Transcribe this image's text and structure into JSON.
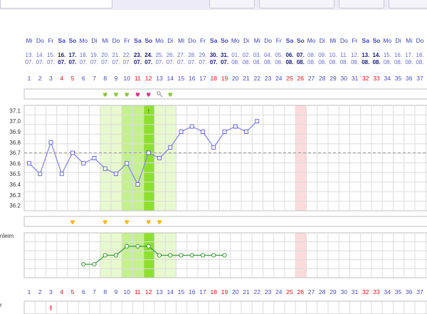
{
  "days": {
    "weekday": [
      "Mi",
      "Do",
      "Fr",
      "Sa",
      "So",
      "Mo",
      "Di",
      "Mi",
      "Do",
      "Fr",
      "Sa",
      "So",
      "Mo",
      "Di",
      "Mi",
      "Do",
      "Fr",
      "Sa",
      "So",
      "Mo",
      "Di",
      "Mi",
      "Do",
      "Fr",
      "Sa",
      "So",
      "Mo",
      "Di",
      "Mi",
      "Do",
      "Fr",
      "Sa",
      "So",
      "Mo",
      "Di",
      "Mi",
      "Do",
      "Fr"
    ],
    "date_top": [
      "13.",
      "14.",
      "15.",
      "16.",
      "17.",
      "18.",
      "19.",
      "20.",
      "21.",
      "22.",
      "23.",
      "24.",
      "25.",
      "26.",
      "27.",
      "28.",
      "29.",
      "30.",
      "31.",
      "01.",
      "02.",
      "03.",
      "04.",
      "05.",
      "06.",
      "07.",
      "08.",
      "09.",
      "10.",
      "11.",
      "12.",
      "13.",
      "14.",
      "15.",
      "16.",
      "17.",
      "18.",
      "19."
    ],
    "date_bottom": [
      "07.",
      "07.",
      "07.",
      "07.",
      "07.",
      "07.",
      "07.",
      "07.",
      "07.",
      "07.",
      "07.",
      "07.",
      "07.",
      "07.",
      "07.",
      "07.",
      "07.",
      "07.",
      "07.",
      "08.",
      "08.",
      "08.",
      "08.",
      "08.",
      "08.",
      "08.",
      "08.",
      "08.",
      "08.",
      "08.",
      "08.",
      "08.",
      "08.",
      "08.",
      "08.",
      "08.",
      "08.",
      "08."
    ],
    "cycle_day": [
      "1",
      "2",
      "3",
      "4",
      "5",
      "6",
      "7",
      "8",
      "9",
      "10",
      "11",
      "12",
      "13",
      "14",
      "15",
      "16",
      "17",
      "18",
      "19",
      "20",
      "21",
      "22",
      "23",
      "24",
      "25",
      "26",
      "27",
      "28",
      "29",
      "30",
      "31",
      "32",
      "33",
      "34",
      "35",
      "36",
      "37",
      "38"
    ],
    "weekend_index": [
      3,
      4,
      10,
      11,
      17,
      18,
      24,
      25,
      31,
      32
    ],
    "red_cycle_index": [
      3,
      4,
      10,
      11,
      17,
      18,
      24,
      25,
      31,
      32
    ]
  },
  "temperature": {
    "y_labels": [
      "37.1",
      "37.0",
      "36.9",
      "36.8",
      "36.7",
      "36.6",
      "36.5",
      "36.4",
      "36.3",
      "36.2"
    ],
    "values": [
      36.6,
      36.5,
      36.8,
      36.5,
      36.7,
      36.6,
      36.65,
      36.55,
      36.5,
      36.6,
      36.4,
      36.7,
      36.65,
      36.75,
      36.9,
      36.95,
      36.9,
      36.75,
      36.9,
      36.95,
      36.9,
      37.0
    ],
    "coverline": 36.7,
    "ovulation_marker": "↑",
    "ylim": [
      36.15,
      37.15
    ]
  },
  "fertile_window": {
    "light_days": [
      7,
      8,
      9,
      10,
      11,
      12,
      13
    ],
    "medium_days": [
      9,
      10,
      11
    ],
    "peak_day": 11
  },
  "highlight_day": 25,
  "symbols_row": {
    "hearts": [
      {
        "day": 7,
        "color": "#8cc63f"
      },
      {
        "day": 8,
        "color": "#8cc63f"
      },
      {
        "day": 9,
        "color": "#8cc63f"
      },
      {
        "day": 10,
        "color": "#e8338a"
      },
      {
        "day": 11,
        "color": "#e8338a"
      },
      {
        "day": 13,
        "color": "#8cc63f"
      }
    ],
    "key_day": 12
  },
  "intercourse_row": {
    "days": [
      4,
      7,
      9,
      11,
      12
    ],
    "color": "#f5b800"
  },
  "mucus": {
    "label": "nleim",
    "values": [
      1,
      1,
      2,
      2,
      3,
      3,
      3,
      2,
      2,
      2,
      2,
      2,
      2,
      2
    ],
    "start_day": 5
  },
  "bottom_row": {
    "label": "r",
    "marker": "!",
    "marker_day": 2
  },
  "colors": {
    "weekday_blue": "#3e3eb8",
    "red": "#dd1111",
    "curve": "#8888e8",
    "mucus_curve": "#3c9a3c",
    "light_green": "#e8f9cf",
    "mid_green": "#c4f08e",
    "peak_green": "#8ee02e",
    "highlight_red": "#fbdcdc"
  }
}
